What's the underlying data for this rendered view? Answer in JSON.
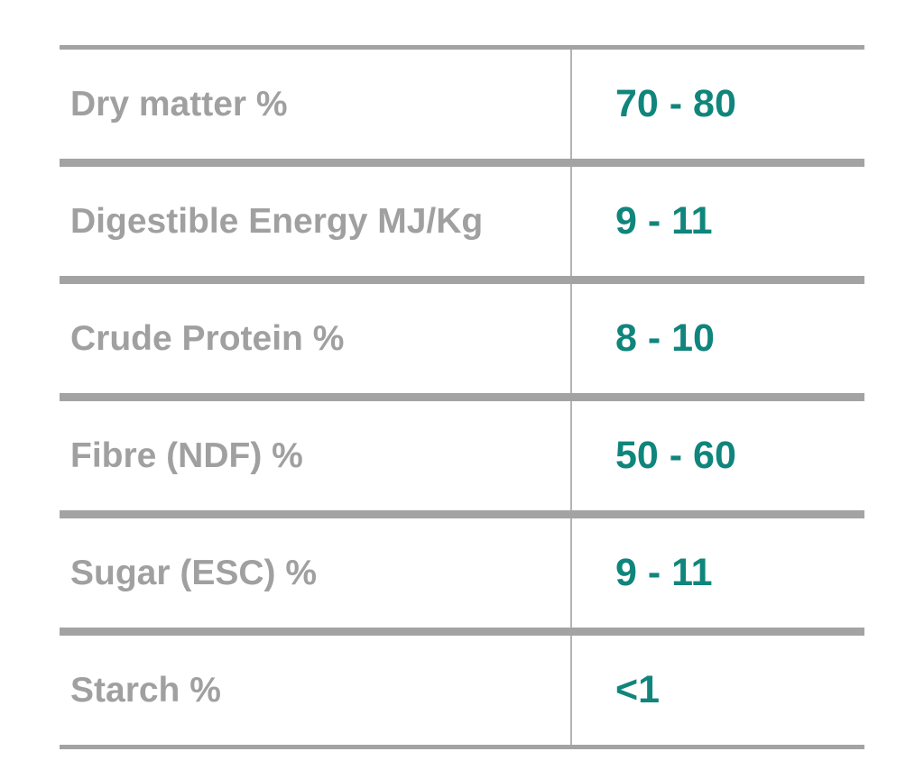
{
  "table": {
    "rows": [
      {
        "label": "Dry matter %",
        "value": "70 - 80"
      },
      {
        "label": "Digestible Energy MJ/Kg",
        "value": "9 - 11"
      },
      {
        "label": "Crude Protein %",
        "value": "8 - 10"
      },
      {
        "label": "Fibre (NDF) %",
        "value": "50 - 60"
      },
      {
        "label": "Sugar (ESC) %",
        "value": "9 - 11"
      },
      {
        "label": "Starch %",
        "value": "<1"
      }
    ]
  },
  "colors": {
    "label_text": "#a0a0a0",
    "value_text": "#10857c",
    "rule": "#a3a3a3",
    "divider": "#b4b4b4"
  }
}
